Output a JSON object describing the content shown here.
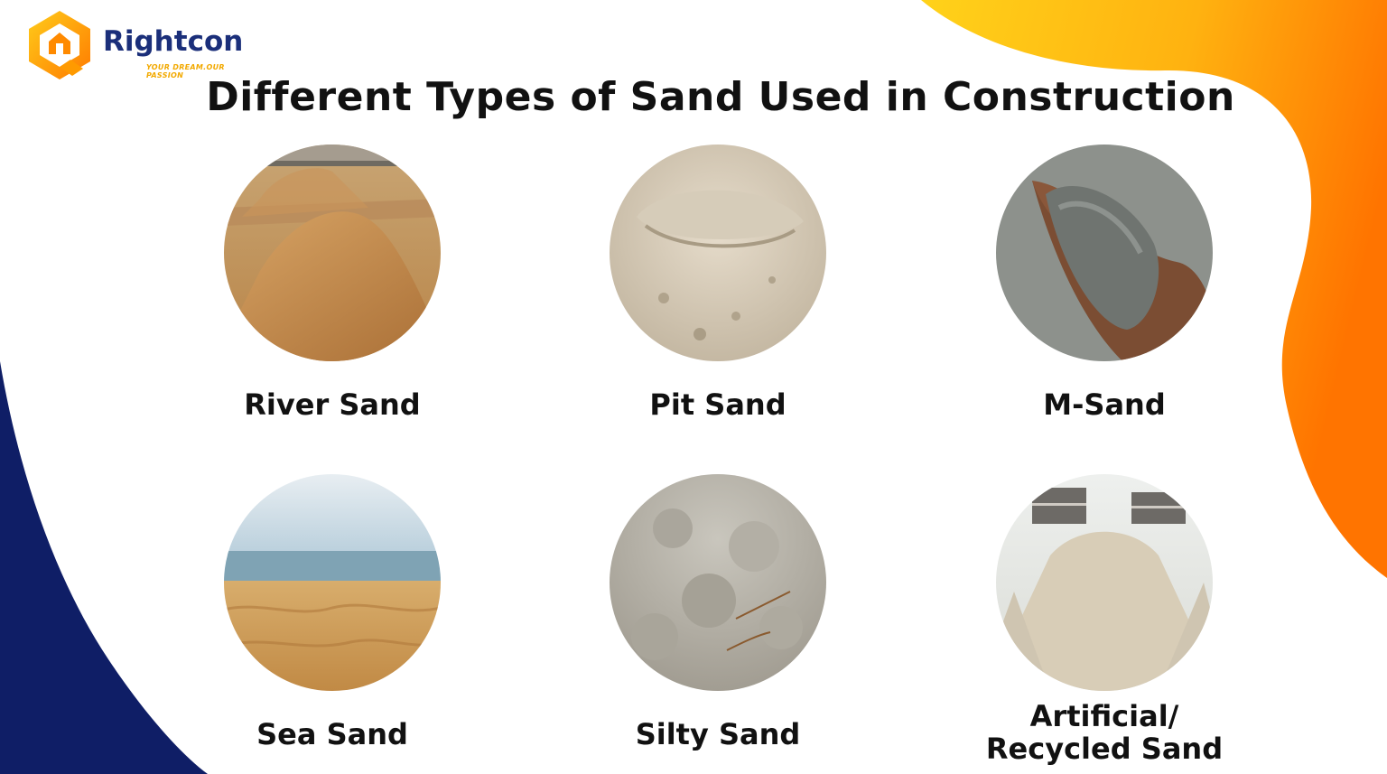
{
  "brand": {
    "name": "Rightcon",
    "tagline": "YOUR DREAM.OUR PASSION",
    "colors": {
      "navy": "#0f1e66",
      "yellow": "#ffc21a",
      "orange": "#ff7a00"
    }
  },
  "title": "Different Types of Sand Used in Construction",
  "sand_types": [
    {
      "label": "River Sand",
      "image": "river-sand-pile-photo"
    },
    {
      "label": "Pit Sand",
      "image": "pit-sand-photo"
    },
    {
      "label": "M-Sand",
      "image": "m-sand-in-hand-photo"
    },
    {
      "label": "Sea Sand",
      "image": "sea-sand-beach-photo"
    },
    {
      "label": "Silty Sand",
      "image": "silty-sand-photo"
    },
    {
      "label_line1": "Artificial/",
      "label_line2": "Recycled Sand",
      "image": "recycled-sand-pile-photo"
    }
  ]
}
